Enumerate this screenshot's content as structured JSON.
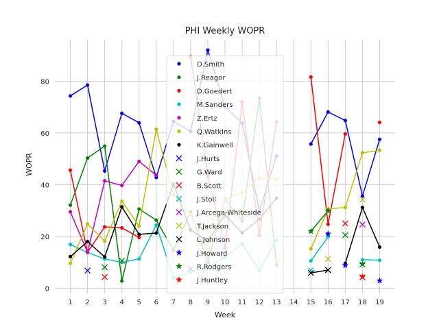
{
  "chart_data": {
    "type": "line",
    "title": "PHI Weekly WOPR",
    "xlabel": "Week",
    "ylabel": "WOPR",
    "xlim": [
      0.1,
      19.9
    ],
    "ylim": [
      -2,
      96
    ],
    "xticks": [
      1,
      2,
      3,
      4,
      5,
      6,
      7,
      8,
      9,
      10,
      11,
      12,
      13,
      14,
      15,
      16,
      17,
      18,
      19
    ],
    "yticks": [
      0,
      20,
      40,
      60,
      80
    ],
    "grid": true,
    "legend_position": "top-center",
    "series": [
      {
        "name": "D.Smith",
        "color": "#0000ff",
        "marker": "dot",
        "points": [
          [
            1,
            74.3
          ],
          [
            2,
            78.5
          ],
          [
            3,
            45.3
          ],
          [
            4,
            67.6
          ],
          [
            5,
            63.9
          ],
          [
            6,
            42.8
          ],
          [
            7,
            64.5
          ],
          [
            8,
            60.6
          ],
          [
            9,
            92.0
          ],
          [
            10,
            70.3
          ],
          [
            11,
            63.8
          ],
          [
            12,
            29.7
          ],
          [
            13,
            51.1
          ],
          [
            15,
            55.7
          ],
          [
            16,
            68.1
          ],
          [
            17,
            64.8
          ],
          [
            18,
            35.6
          ],
          [
            19,
            57.5
          ]
        ]
      },
      {
        "name": "J.Reagor",
        "color": "#008000",
        "marker": "dot",
        "points": [
          [
            1,
            32.1
          ],
          [
            2,
            50.3
          ],
          [
            3,
            54.9
          ],
          [
            4,
            2.8
          ],
          [
            5,
            30.6
          ],
          [
            6,
            26.3
          ],
          [
            7,
            14.7
          ],
          [
            8,
            29.6
          ],
          [
            9,
            10.0
          ],
          [
            10,
            34.5
          ],
          [
            11,
            26.1
          ],
          [
            12,
            73.4
          ],
          [
            13,
            9.0
          ]
        ]
      },
      {
        "name": "D.Goedert",
        "color": "#ff0000",
        "marker": "dot",
        "points": [
          [
            1,
            45.6
          ],
          [
            2,
            13.9
          ],
          [
            3,
            23.7
          ],
          [
            4,
            23.3
          ],
          [
            5,
            19.6
          ],
          [
            8,
            89.6
          ],
          [
            9,
            43.4
          ],
          [
            10,
            15.6
          ],
          [
            11,
            72.0
          ],
          [
            12,
            20.4
          ],
          [
            13,
            64.3
          ],
          [
            15,
            81.6
          ],
          [
            16,
            24.7
          ],
          [
            17,
            59.6
          ],
          [
            19,
            64.1
          ]
        ]
      },
      {
        "name": "M.Sanders",
        "color": "#00bfbf",
        "marker": "dot",
        "points": [
          [
            1,
            16.9
          ],
          [
            2,
            13.8
          ],
          [
            3,
            11.3
          ],
          [
            4,
            10.0
          ],
          [
            5,
            11.3
          ],
          [
            6,
            24.4
          ],
          [
            7,
            3.9
          ],
          [
            8,
            6.3
          ],
          [
            9,
            8.2
          ],
          [
            10,
            11.9
          ],
          [
            11,
            17.1
          ],
          [
            12,
            6.9
          ],
          [
            13,
            18.7
          ],
          [
            15,
            10.6
          ],
          [
            16,
            19.8
          ],
          [
            18,
            11.0
          ],
          [
            19,
            10.8
          ]
        ]
      },
      {
        "name": "Z.Ertz",
        "color": "#bf00bf",
        "marker": "dot",
        "points": [
          [
            1,
            29.5
          ],
          [
            2,
            13.9
          ],
          [
            3,
            41.5
          ],
          [
            4,
            39.7
          ],
          [
            5,
            49.0
          ],
          [
            6,
            43.6
          ]
        ]
      },
      {
        "name": "Q.Watkins",
        "color": "#bfbf00",
        "marker": "dot",
        "points": [
          [
            1,
            9.6
          ],
          [
            2,
            24.8
          ],
          [
            3,
            18.2
          ],
          [
            4,
            33.6
          ],
          [
            5,
            24.0
          ],
          [
            6,
            61.4
          ],
          [
            7,
            36.2
          ],
          [
            8,
            28.4
          ],
          [
            9,
            14.6
          ],
          [
            10,
            34.2
          ],
          [
            11,
            37.0
          ],
          [
            12,
            42.6
          ],
          [
            13,
            42.1
          ],
          [
            15,
            15.2
          ],
          [
            16,
            30.6
          ],
          [
            17,
            31.2
          ],
          [
            18,
            52.3
          ],
          [
            19,
            53.3
          ]
        ]
      },
      {
        "name": "K.Gainwell",
        "color": "#000000",
        "marker": "dot",
        "points": [
          [
            1,
            12.2
          ],
          [
            2,
            18.0
          ],
          [
            3,
            12.1
          ],
          [
            4,
            31.4
          ],
          [
            5,
            20.8
          ],
          [
            6,
            21.3
          ],
          [
            7,
            40.2
          ],
          [
            8,
            22.5
          ],
          [
            9,
            18.2
          ],
          [
            10,
            28.3
          ],
          [
            11,
            21.4
          ],
          [
            12,
            26.7
          ],
          [
            13,
            34.8
          ],
          [
            17,
            9.6
          ],
          [
            18,
            31.2
          ],
          [
            19,
            15.9
          ]
        ]
      },
      {
        "name": "J.Hurts",
        "color": "#0000ff",
        "marker": "x",
        "lines": false,
        "points": [
          [
            2,
            6.8
          ],
          [
            8,
            7.5
          ]
        ]
      },
      {
        "name": "G.Ward",
        "color": "#008000",
        "marker": "x",
        "lines": false,
        "points": [
          [
            3,
            8.1
          ],
          [
            4,
            10.6
          ],
          [
            17,
            20.5
          ],
          [
            18,
            9.1
          ]
        ]
      },
      {
        "name": "B.Scott",
        "color": "#ff0000",
        "marker": "x",
        "lines": false,
        "points": [
          [
            3,
            4.3
          ],
          [
            17,
            25.0
          ],
          [
            18,
            4.2
          ]
        ]
      },
      {
        "name": "J.Stoll",
        "color": "#00bfbf",
        "marker": "x",
        "lines": false,
        "points": [
          [
            15,
            6.9
          ]
        ]
      },
      {
        "name": "J.Arcega-Whiteside",
        "color": "#bf00bf",
        "marker": "x",
        "lines": false,
        "points": [
          [
            18,
            24.6
          ]
        ]
      },
      {
        "name": "T.Jackson",
        "color": "#bfbf00",
        "marker": "x",
        "lines": false,
        "points": [
          [
            16,
            11.3
          ],
          [
            18,
            34.2
          ]
        ]
      },
      {
        "name": "L.Johnson",
        "color": "#000000",
        "marker": "x",
        "points": [
          [
            15,
            5.9
          ],
          [
            16,
            7.0
          ]
        ]
      },
      {
        "name": "J.Howard",
        "color": "#0000ff",
        "marker": "star",
        "lines": false,
        "points": [
          [
            16,
            21.0
          ],
          [
            17,
            8.8
          ],
          [
            19,
            2.9
          ]
        ]
      },
      {
        "name": "R.Rodgers",
        "color": "#008000",
        "marker": "star",
        "points": [
          [
            15,
            22.0
          ],
          [
            16,
            29.9
          ],
          [
            18,
            9.3
          ]
        ]
      },
      {
        "name": "J.Huntley",
        "color": "#ff0000",
        "marker": "star",
        "lines": false,
        "points": [
          [
            18,
            4.4
          ]
        ]
      }
    ]
  }
}
